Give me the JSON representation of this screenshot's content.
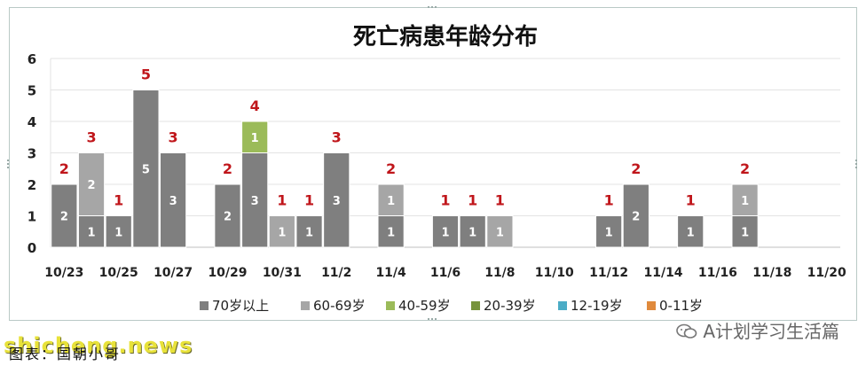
{
  "colors": {
    "s70": "#7f7f7f",
    "s60": "#a6a6a6",
    "s40": "#9bbb59",
    "s20": "#77933c",
    "s12": "#4bacc6",
    "s0": "#e08a3c",
    "totals": "#c0161b"
  },
  "chart_data": {
    "type": "bar",
    "stacked": true,
    "title": "死亡病患年龄分布",
    "xlabel": "",
    "ylabel": "",
    "ylim": [
      0,
      6
    ],
    "yticks": [
      "0",
      "1",
      "2",
      "3",
      "4",
      "5",
      "6"
    ],
    "grid": true,
    "legend_position": "bottom",
    "categories": [
      "10/23",
      "10/24",
      "10/25",
      "10/26",
      "10/27",
      "10/28",
      "10/29",
      "10/30",
      "10/31",
      "11/1",
      "11/2",
      "11/3",
      "11/4",
      "11/5",
      "11/6",
      "11/7",
      "11/8",
      "11/9",
      "11/10",
      "11/11",
      "11/12",
      "11/13",
      "11/14",
      "11/15",
      "11/16",
      "11/17",
      "11/18",
      "11/19",
      "11/20"
    ],
    "tick_labels": [
      "10/23",
      "",
      "10/25",
      "",
      "10/27",
      "",
      "10/29",
      "",
      "10/31",
      "",
      "11/2",
      "",
      "11/4",
      "",
      "11/6",
      "",
      "11/8",
      "",
      "11/10",
      "",
      "11/12",
      "",
      "11/14",
      "",
      "11/16",
      "",
      "11/18",
      "",
      "11/20"
    ],
    "series": [
      {
        "name": "70岁以上",
        "color_key": "s70",
        "values": [
          2,
          1,
          1,
          5,
          3,
          0,
          2,
          3,
          0,
          1,
          3,
          0,
          1,
          0,
          1,
          1,
          0,
          0,
          0,
          0,
          1,
          2,
          0,
          1,
          0,
          1,
          0,
          0,
          0
        ]
      },
      {
        "name": "60-69岁",
        "color_key": "s60",
        "values": [
          0,
          2,
          0,
          0,
          0,
          0,
          0,
          0,
          1,
          0,
          0,
          0,
          1,
          0,
          0,
          0,
          1,
          0,
          0,
          0,
          0,
          0,
          0,
          0,
          0,
          1,
          0,
          0,
          0
        ]
      },
      {
        "name": "40-59岁",
        "color_key": "s40",
        "values": [
          0,
          0,
          0,
          0,
          0,
          0,
          0,
          1,
          0,
          0,
          0,
          0,
          0,
          0,
          0,
          0,
          0,
          0,
          0,
          0,
          0,
          0,
          0,
          0,
          0,
          0,
          0,
          0,
          0
        ]
      },
      {
        "name": "20-39岁",
        "color_key": "s20",
        "values": [
          0,
          0,
          0,
          0,
          0,
          0,
          0,
          0,
          0,
          0,
          0,
          0,
          0,
          0,
          0,
          0,
          0,
          0,
          0,
          0,
          0,
          0,
          0,
          0,
          0,
          0,
          0,
          0,
          0
        ]
      },
      {
        "name": "12-19岁",
        "color_key": "s12",
        "values": [
          0,
          0,
          0,
          0,
          0,
          0,
          0,
          0,
          0,
          0,
          0,
          0,
          0,
          0,
          0,
          0,
          0,
          0,
          0,
          0,
          0,
          0,
          0,
          0,
          0,
          0,
          0,
          0,
          0
        ]
      },
      {
        "name": "0-11岁",
        "color_key": "s0",
        "values": [
          0,
          0,
          0,
          0,
          0,
          0,
          0,
          0,
          0,
          0,
          0,
          0,
          0,
          0,
          0,
          0,
          0,
          0,
          0,
          0,
          0,
          0,
          0,
          0,
          0,
          0,
          0,
          0,
          0
        ]
      }
    ],
    "totals": [
      2,
      3,
      1,
      5,
      3,
      0,
      2,
      4,
      1,
      1,
      3,
      0,
      2,
      0,
      1,
      1,
      1,
      0,
      0,
      0,
      1,
      2,
      0,
      1,
      0,
      2,
      0,
      0,
      0
    ]
  },
  "footer": {
    "watermark": "shicheng.news",
    "note": "图表：国朝小哥",
    "account": "A计划学习生活篇"
  }
}
